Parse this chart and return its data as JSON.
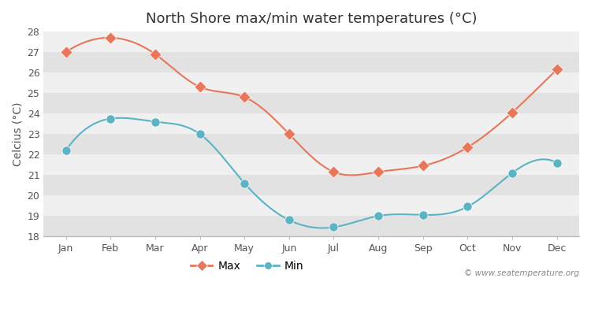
{
  "months": [
    "Jan",
    "Feb",
    "Mar",
    "Apr",
    "May",
    "Jun",
    "Jul",
    "Aug",
    "Sep",
    "Oct",
    "Nov",
    "Dec"
  ],
  "max_temps": [
    27.0,
    27.7,
    26.9,
    25.3,
    24.8,
    23.0,
    21.15,
    21.15,
    21.45,
    22.35,
    24.05,
    26.15
  ],
  "min_temps": [
    22.2,
    23.75,
    23.6,
    23.0,
    20.6,
    18.8,
    18.45,
    19.0,
    19.05,
    19.45,
    21.1,
    21.6
  ],
  "max_color": "#e8765a",
  "min_color": "#5bb3c4",
  "title": "North Shore max/min water temperatures (°C)",
  "ylabel": "Celcius (°C)",
  "ylim": [
    18,
    28
  ],
  "yticks": [
    18,
    19,
    20,
    21,
    22,
    23,
    24,
    25,
    26,
    27,
    28
  ],
  "band_color_light": "#f0f0f0",
  "band_color_dark": "#e2e2e2",
  "fig_bg_color": "#ffffff",
  "watermark": "© www.seatemperature.org",
  "legend_max": "Max",
  "legend_min": "Min",
  "title_fontsize": 13,
  "label_fontsize": 10,
  "tick_fontsize": 9
}
